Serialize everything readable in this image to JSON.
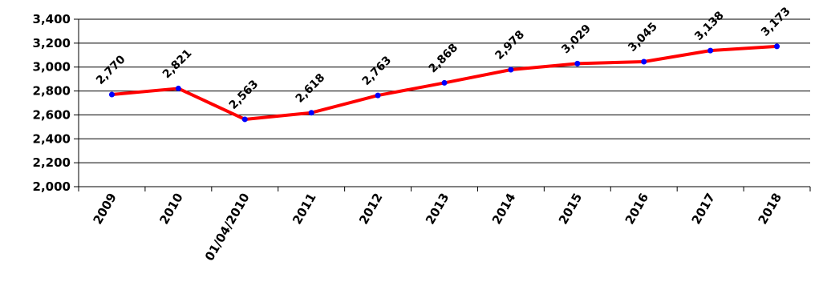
{
  "chart_data": {
    "type": "line",
    "categories": [
      "2009",
      "2010",
      "01/04/2010",
      "2011",
      "2012",
      "2013",
      "2014",
      "2015",
      "2016",
      "2017",
      "2018"
    ],
    "values": [
      2770,
      2821,
      2563,
      2618,
      2763,
      2868,
      2978,
      3029,
      3045,
      3138,
      3173
    ],
    "data_labels": [
      "2,770",
      "2,821",
      "2,563",
      "2,618",
      "2,763",
      "2,868",
      "2,978",
      "3,029",
      "3,045",
      "3,138",
      "3,173"
    ],
    "ylim": [
      2000,
      3400
    ],
    "yticks": [
      2000,
      2200,
      2400,
      2600,
      2800,
      3000,
      3200,
      3400
    ],
    "ytick_labels": [
      "2,000",
      "2,200",
      "2,400",
      "2,600",
      "2,800",
      "3,000",
      "3,200",
      "3,400"
    ],
    "grid": true,
    "legend": "none",
    "colors": {
      "line": "#ff0000",
      "marker": "#0000ff",
      "grid": "#000000"
    }
  }
}
